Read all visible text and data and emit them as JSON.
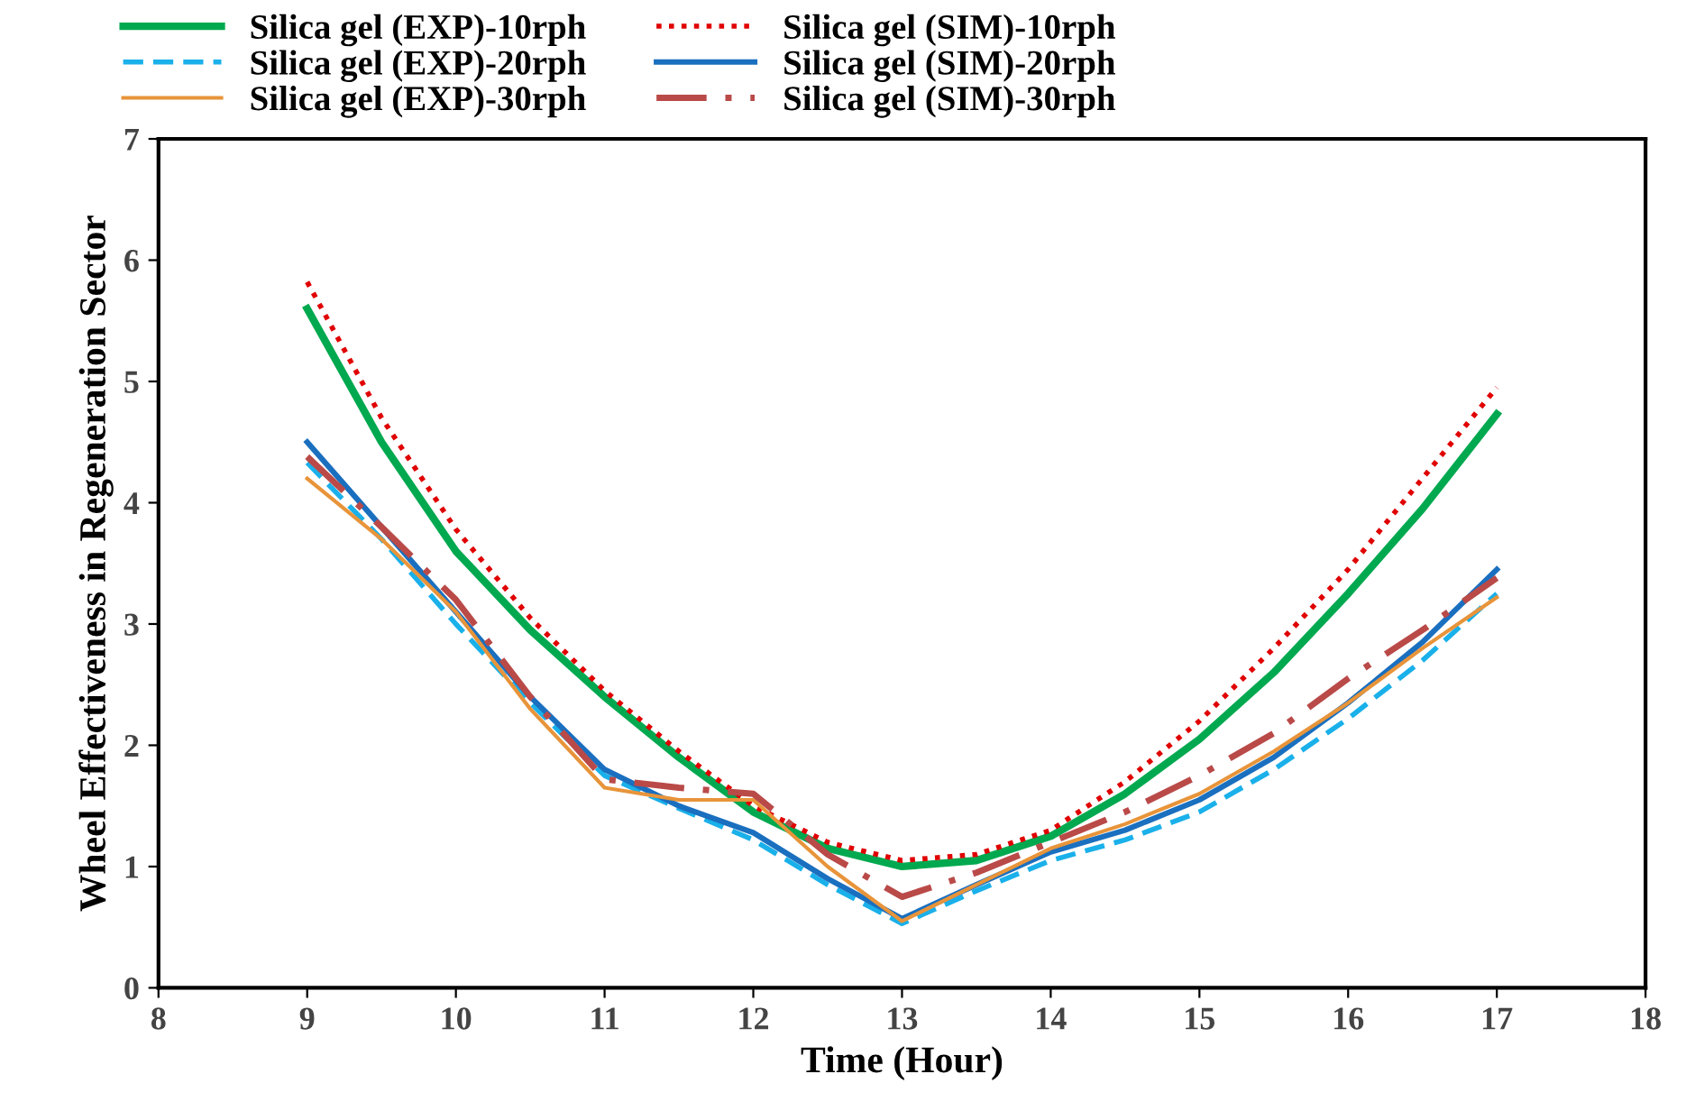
{
  "chart_data": {
    "type": "line",
    "xlabel": "Time (Hour)",
    "ylabel": "Wheel Effectiveness in Regeneration Sector",
    "x": [
      9,
      9.5,
      10,
      10.5,
      11,
      11.5,
      12,
      12.5,
      13,
      13.5,
      14,
      14.5,
      15,
      15.5,
      16,
      16.5,
      17
    ],
    "xlim": [
      8,
      18
    ],
    "xticks": [
      8,
      9,
      10,
      11,
      12,
      13,
      14,
      15,
      16,
      17,
      18
    ],
    "ylim": [
      0,
      7
    ],
    "yticks": [
      0,
      1,
      2,
      3,
      4,
      5,
      6,
      7
    ],
    "grid": false,
    "legend": "top",
    "marker": "none",
    "series": [
      {
        "name": "Silica gel (EXP)-10rph",
        "color": "#00a94f",
        "line_style": "solid",
        "values": [
          5.6,
          4.5,
          3.6,
          2.95,
          2.4,
          1.9,
          1.45,
          1.15,
          1.0,
          1.05,
          1.25,
          1.6,
          2.05,
          2.6,
          3.25,
          3.95,
          4.73
        ]
      },
      {
        "name": "Silica gel (SIM)-10rph",
        "color": "#e00000",
        "line_style": "dotted",
        "values": [
          5.82,
          4.7,
          3.78,
          3.05,
          2.45,
          1.95,
          1.5,
          1.2,
          1.05,
          1.1,
          1.3,
          1.7,
          2.2,
          2.8,
          3.45,
          4.2,
          4.95
        ]
      },
      {
        "name": "Silica gel (EXP)-20rph",
        "color": "#1ab0ea",
        "line_style": "dashed",
        "values": [
          4.33,
          3.7,
          3.0,
          2.35,
          1.75,
          1.48,
          1.22,
          0.85,
          0.53,
          0.8,
          1.05,
          1.22,
          1.45,
          1.8,
          2.22,
          2.7,
          3.25
        ]
      },
      {
        "name": "Silica gel (SIM)-20rph",
        "color": "#1a6fbf",
        "line_style": "solid",
        "values": [
          4.5,
          3.8,
          3.1,
          2.4,
          1.8,
          1.5,
          1.28,
          0.9,
          0.57,
          0.85,
          1.12,
          1.3,
          1.55,
          1.9,
          2.35,
          2.85,
          3.45
        ]
      },
      {
        "name": "Silica gel (EXP)-30rph",
        "color": "#e8943a",
        "line_style": "solid",
        "values": [
          4.2,
          3.7,
          3.1,
          2.3,
          1.65,
          1.55,
          1.55,
          1.0,
          0.55,
          0.85,
          1.15,
          1.35,
          1.6,
          1.95,
          2.35,
          2.8,
          3.22
        ]
      },
      {
        "name": "Silica gel (SIM)-30rph",
        "color": "#b94a48",
        "line_style": "dashdot",
        "values": [
          4.38,
          3.8,
          3.2,
          2.4,
          1.72,
          1.65,
          1.6,
          1.1,
          0.75,
          0.95,
          1.2,
          1.45,
          1.75,
          2.1,
          2.55,
          2.95,
          3.38
        ]
      }
    ]
  }
}
